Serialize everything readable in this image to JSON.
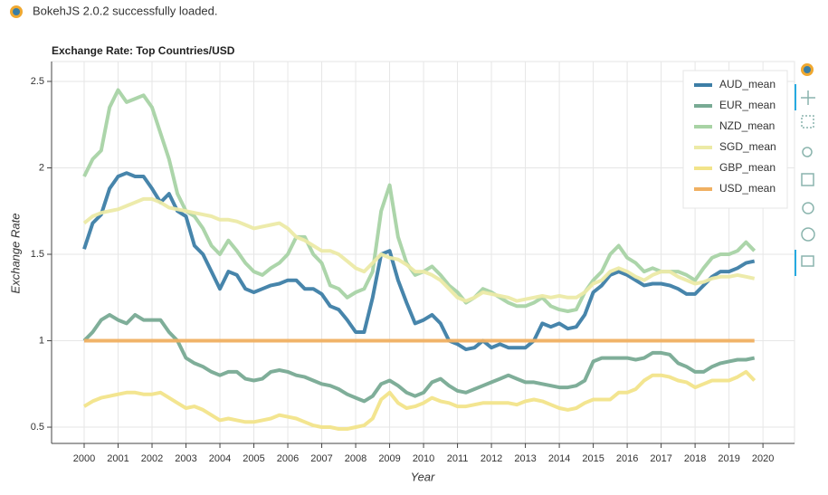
{
  "header": {
    "text": "BokehJS 2.0.2 successfully loaded."
  },
  "chart_data": {
    "type": "line",
    "title": "Exchange Rate: Top Countries/USD",
    "x_label": "Year",
    "y_label": "Exchange Rate",
    "x": [
      2000,
      2000.25,
      2000.5,
      2000.75,
      2001,
      2001.25,
      2001.5,
      2001.75,
      2002,
      2002.25,
      2002.5,
      2002.75,
      2003,
      2003.25,
      2003.5,
      2003.75,
      2004,
      2004.25,
      2004.5,
      2004.75,
      2005,
      2005.25,
      2005.5,
      2005.75,
      2006,
      2006.25,
      2006.5,
      2006.75,
      2007,
      2007.25,
      2007.5,
      2007.75,
      2008,
      2008.25,
      2008.5,
      2008.75,
      2009,
      2009.25,
      2009.5,
      2009.75,
      2010,
      2010.25,
      2010.5,
      2010.75,
      2011,
      2011.25,
      2011.5,
      2011.75,
      2012,
      2012.25,
      2012.5,
      2012.75,
      2013,
      2013.25,
      2013.5,
      2013.75,
      2014,
      2014.25,
      2014.5,
      2014.75,
      2015,
      2015.25,
      2015.5,
      2015.75,
      2016,
      2016.25,
      2016.5,
      2016.75,
      2017,
      2017.25,
      2017.5,
      2017.75,
      2018,
      2018.25,
      2018.5,
      2018.75,
      2019,
      2019.25,
      2019.5,
      2019.75
    ],
    "series": [
      {
        "name": "AUD_mean",
        "color": "#3d7ea6",
        "values": [
          1.53,
          1.68,
          1.73,
          1.88,
          1.95,
          1.97,
          1.95,
          1.95,
          1.88,
          1.8,
          1.85,
          1.75,
          1.72,
          1.55,
          1.5,
          1.4,
          1.3,
          1.4,
          1.38,
          1.3,
          1.28,
          1.3,
          1.32,
          1.33,
          1.35,
          1.35,
          1.3,
          1.3,
          1.27,
          1.2,
          1.18,
          1.12,
          1.05,
          1.05,
          1.25,
          1.5,
          1.52,
          1.35,
          1.22,
          1.1,
          1.12,
          1.15,
          1.1,
          1.0,
          0.98,
          0.95,
          0.96,
          1.0,
          0.96,
          0.98,
          0.96,
          0.96,
          0.96,
          1.0,
          1.1,
          1.08,
          1.1,
          1.07,
          1.08,
          1.15,
          1.28,
          1.32,
          1.38,
          1.4,
          1.38,
          1.35,
          1.32,
          1.33,
          1.33,
          1.32,
          1.3,
          1.27,
          1.27,
          1.32,
          1.37,
          1.4,
          1.4,
          1.42,
          1.45,
          1.46
        ]
      },
      {
        "name": "EUR_mean",
        "color": "#78aa94",
        "values": [
          1.0,
          1.05,
          1.12,
          1.15,
          1.12,
          1.1,
          1.15,
          1.12,
          1.12,
          1.12,
          1.05,
          1.0,
          0.9,
          0.87,
          0.85,
          0.82,
          0.8,
          0.82,
          0.82,
          0.78,
          0.77,
          0.78,
          0.82,
          0.83,
          0.82,
          0.8,
          0.79,
          0.77,
          0.75,
          0.74,
          0.72,
          0.69,
          0.67,
          0.65,
          0.68,
          0.75,
          0.77,
          0.74,
          0.7,
          0.68,
          0.7,
          0.76,
          0.78,
          0.74,
          0.71,
          0.7,
          0.72,
          0.74,
          0.76,
          0.78,
          0.8,
          0.78,
          0.76,
          0.76,
          0.75,
          0.74,
          0.73,
          0.73,
          0.74,
          0.77,
          0.88,
          0.9,
          0.9,
          0.9,
          0.9,
          0.89,
          0.9,
          0.93,
          0.93,
          0.92,
          0.87,
          0.85,
          0.82,
          0.82,
          0.85,
          0.87,
          0.88,
          0.89,
          0.89,
          0.9
        ]
      },
      {
        "name": "NZD_mean",
        "color": "#a8d3a5",
        "values": [
          1.95,
          2.05,
          2.1,
          2.35,
          2.45,
          2.38,
          2.4,
          2.42,
          2.35,
          2.2,
          2.05,
          1.85,
          1.75,
          1.72,
          1.65,
          1.55,
          1.5,
          1.58,
          1.52,
          1.45,
          1.4,
          1.38,
          1.42,
          1.45,
          1.5,
          1.6,
          1.6,
          1.5,
          1.45,
          1.32,
          1.3,
          1.25,
          1.28,
          1.3,
          1.4,
          1.75,
          1.9,
          1.6,
          1.45,
          1.38,
          1.4,
          1.43,
          1.38,
          1.32,
          1.28,
          1.22,
          1.25,
          1.3,
          1.28,
          1.25,
          1.22,
          1.2,
          1.2,
          1.22,
          1.25,
          1.2,
          1.18,
          1.17,
          1.18,
          1.28,
          1.35,
          1.4,
          1.5,
          1.55,
          1.48,
          1.45,
          1.4,
          1.42,
          1.4,
          1.4,
          1.4,
          1.38,
          1.35,
          1.42,
          1.48,
          1.5,
          1.5,
          1.52,
          1.57,
          1.52
        ]
      },
      {
        "name": "SGD_mean",
        "color": "#eceaa6",
        "values": [
          1.68,
          1.72,
          1.74,
          1.75,
          1.76,
          1.78,
          1.8,
          1.82,
          1.82,
          1.8,
          1.77,
          1.76,
          1.75,
          1.74,
          1.73,
          1.72,
          1.7,
          1.7,
          1.69,
          1.67,
          1.65,
          1.66,
          1.67,
          1.68,
          1.65,
          1.6,
          1.58,
          1.55,
          1.52,
          1.52,
          1.5,
          1.46,
          1.42,
          1.4,
          1.45,
          1.5,
          1.48,
          1.47,
          1.44,
          1.4,
          1.4,
          1.38,
          1.35,
          1.3,
          1.25,
          1.23,
          1.25,
          1.28,
          1.27,
          1.26,
          1.25,
          1.23,
          1.24,
          1.25,
          1.26,
          1.25,
          1.26,
          1.25,
          1.25,
          1.28,
          1.33,
          1.35,
          1.4,
          1.42,
          1.4,
          1.37,
          1.35,
          1.38,
          1.4,
          1.4,
          1.37,
          1.35,
          1.33,
          1.34,
          1.36,
          1.37,
          1.37,
          1.38,
          1.37,
          1.36
        ]
      },
      {
        "name": "GBP_mean",
        "color": "#f2e48a",
        "values": [
          0.62,
          0.65,
          0.67,
          0.68,
          0.69,
          0.7,
          0.7,
          0.69,
          0.69,
          0.7,
          0.67,
          0.64,
          0.61,
          0.62,
          0.6,
          0.57,
          0.54,
          0.55,
          0.54,
          0.53,
          0.53,
          0.54,
          0.55,
          0.57,
          0.56,
          0.55,
          0.53,
          0.51,
          0.5,
          0.5,
          0.49,
          0.49,
          0.5,
          0.51,
          0.55,
          0.66,
          0.7,
          0.64,
          0.61,
          0.62,
          0.64,
          0.67,
          0.65,
          0.64,
          0.62,
          0.62,
          0.63,
          0.64,
          0.64,
          0.64,
          0.64,
          0.63,
          0.65,
          0.66,
          0.65,
          0.63,
          0.61,
          0.6,
          0.61,
          0.64,
          0.66,
          0.66,
          0.66,
          0.7,
          0.7,
          0.72,
          0.77,
          0.8,
          0.8,
          0.79,
          0.77,
          0.76,
          0.73,
          0.75,
          0.77,
          0.77,
          0.77,
          0.79,
          0.82,
          0.77
        ]
      },
      {
        "name": "USD_mean",
        "color": "#f0b062",
        "values": [
          1,
          1,
          1,
          1,
          1,
          1,
          1,
          1,
          1,
          1,
          1,
          1,
          1,
          1,
          1,
          1,
          1,
          1,
          1,
          1,
          1,
          1,
          1,
          1,
          1,
          1,
          1,
          1,
          1,
          1,
          1,
          1,
          1,
          1,
          1,
          1,
          1,
          1,
          1,
          1,
          1,
          1,
          1,
          1,
          1,
          1,
          1,
          1,
          1,
          1,
          1,
          1,
          1,
          1,
          1,
          1,
          1,
          1,
          1,
          1,
          1,
          1,
          1,
          1,
          1,
          1,
          1,
          1,
          1,
          1,
          1,
          1,
          1,
          1,
          1,
          1,
          1,
          1,
          1,
          1
        ]
      }
    ],
    "xlim": [
      1999.04,
      2020.93
    ],
    "ylim": [
      0.406,
      2.615
    ],
    "xticks": [
      2000,
      2001,
      2002,
      2003,
      2004,
      2005,
      2006,
      2007,
      2008,
      2009,
      2010,
      2011,
      2012,
      2013,
      2014,
      2015,
      2016,
      2017,
      2018,
      2019,
      2020
    ],
    "yticks": [
      0.5,
      1,
      1.5,
      2,
      2.5
    ],
    "grid": true,
    "legend": "top-right"
  }
}
